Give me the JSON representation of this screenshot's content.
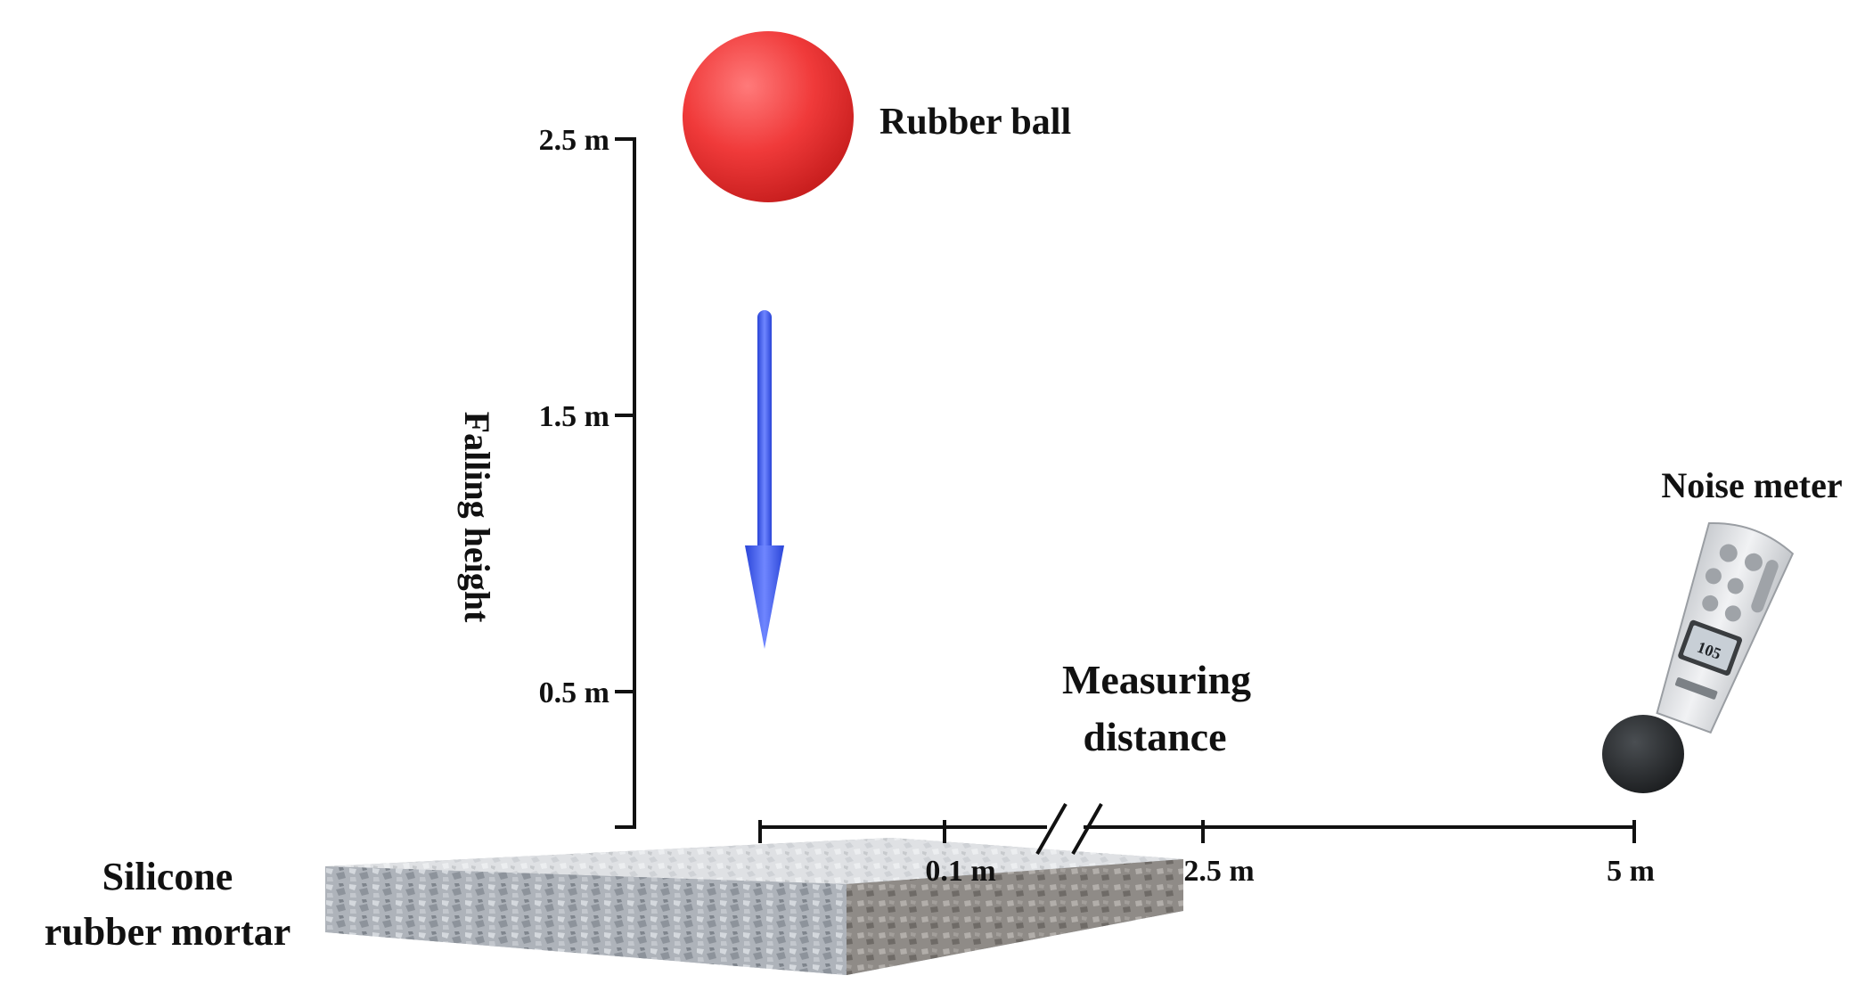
{
  "labels": {
    "rubber_ball": "Rubber ball",
    "falling_height": "Falling height",
    "measuring_distance_line1": "Measuring",
    "measuring_distance_line2": "distance",
    "noise_meter": "Noise meter",
    "specimen_line1": "Silicone",
    "specimen_line2": "rubber mortar"
  },
  "height_ticks": [
    "2.5 m",
    "1.5 m",
    "0.5 m"
  ],
  "distance_ticks": [
    "0.1 m",
    "2.5 m",
    "5 m"
  ],
  "meter_display": "105",
  "colors": {
    "ball": "#f03a3a",
    "arrow": "#3f5ef0",
    "axis": "#111111",
    "slab": "#a9adb3",
    "meter_body": "#e4e6e8",
    "meter_mic": "#2a2d2f"
  },
  "icons": {
    "ball": "red-sphere",
    "arrow": "down-arrow",
    "meter": "sound-level-meter",
    "slab": "textured-slab"
  }
}
